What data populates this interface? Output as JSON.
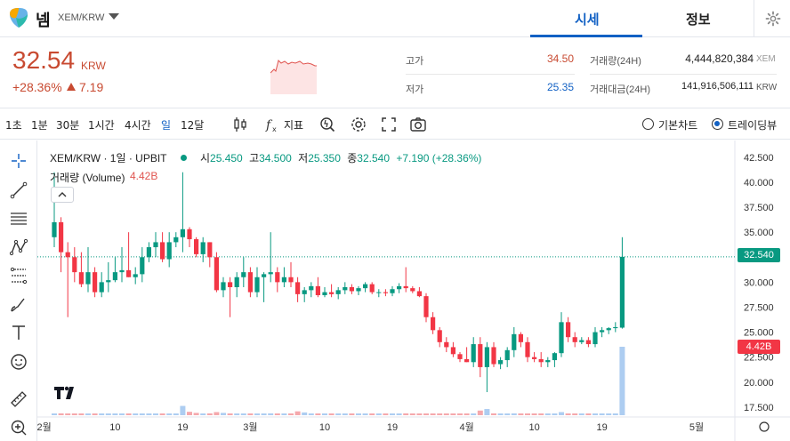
{
  "header": {
    "coin_name": "넴",
    "pair": "XEM/KRW",
    "tabs": [
      "시세",
      "정보"
    ]
  },
  "summary": {
    "price": "32.54",
    "unit": "KRW",
    "change_rate": "+28.36%",
    "change_amount": "7.19",
    "high_label": "고가",
    "high_value": "34.50",
    "low_label": "저가",
    "low_value": "25.35",
    "volume_label": "거래량(24H)",
    "volume_value": "4,444,820,384",
    "volume_unit": "XEM",
    "amount_label": "거래대금(24H)",
    "amount_value": "141,916,506,111",
    "amount_unit": "KRW"
  },
  "toolbar": {
    "intervals": [
      "1초",
      "1분",
      "30분",
      "1시간",
      "4시간",
      "일",
      "12달"
    ],
    "active_interval": "일",
    "indicator_label": "지표",
    "basic_chart_label": "기본차트",
    "tradingview_label": "트레이딩뷰"
  },
  "legend": {
    "symbol": "XEM/KRW · 1일 · UPBIT",
    "o_label": "시",
    "o": "25.450",
    "h_label": "고",
    "h": "34.500",
    "l_label": "저",
    "l": "25.350",
    "c_label": "종",
    "c": "32.540",
    "change": "+7.190 (+28.36%)",
    "volume_label": "거래량 (Volume)",
    "volume_value": "4.42B"
  },
  "price_tag": "32.540",
  "volume_tag": "4.42B",
  "colors": {
    "up": "#089981",
    "down": "#f23645",
    "accent": "#1261c4",
    "brand_red": "#c84a31"
  },
  "chart_data": {
    "type": "candlestick",
    "y_ticks": [
      "42.500",
      "40.000",
      "37.500",
      "35.000",
      "32.500",
      "30.000",
      "27.500",
      "25.000",
      "22.500",
      "20.000",
      "17.500"
    ],
    "ylim": [
      16.6,
      43.2
    ],
    "x_ticks": [
      "2월",
      "10",
      "19",
      "3월",
      "10",
      "19",
      "4월",
      "10",
      "19",
      "5월"
    ],
    "last_close": 32.54,
    "ohlc": [
      [
        34.5,
        41.0,
        33.5,
        36.0
      ],
      [
        36.0,
        36.5,
        31.0,
        33.0
      ],
      [
        33.0,
        34.0,
        26.5,
        32.5
      ],
      [
        32.5,
        33.5,
        30.0,
        31.0
      ],
      [
        31.0,
        33.0,
        29.5,
        29.8
      ],
      [
        29.8,
        33.5,
        29.0,
        31.0
      ],
      [
        31.0,
        31.5,
        28.5,
        29.0
      ],
      [
        29.0,
        31.0,
        28.5,
        30.0
      ],
      [
        30.0,
        32.0,
        29.0,
        30.2
      ],
      [
        30.2,
        32.5,
        30.0,
        31.0
      ],
      [
        31.0,
        33.5,
        30.0,
        31.2
      ],
      [
        31.2,
        35.0,
        30.5,
        30.5
      ],
      [
        30.5,
        31.5,
        29.8,
        30.8
      ],
      [
        30.8,
        33.5,
        30.0,
        32.5
      ],
      [
        32.5,
        34.0,
        32.0,
        33.5
      ],
      [
        33.5,
        35.0,
        32.5,
        34.0
      ],
      [
        34.0,
        35.0,
        32.0,
        32.3
      ],
      [
        32.3,
        35.0,
        31.5,
        34.0
      ],
      [
        34.0,
        35.0,
        33.5,
        34.5
      ],
      [
        34.5,
        41.0,
        33.0,
        35.3
      ],
      [
        35.3,
        35.5,
        33.5,
        34.3
      ],
      [
        34.3,
        34.5,
        32.5,
        32.8
      ],
      [
        32.8,
        34.5,
        32.0,
        34.0
      ],
      [
        34.0,
        34.0,
        31.5,
        32.5
      ],
      [
        32.5,
        33.0,
        29.0,
        29.2
      ],
      [
        29.2,
        30.5,
        28.5,
        30.0
      ],
      [
        30.0,
        30.5,
        26.5,
        29.5
      ],
      [
        29.5,
        31.0,
        28.5,
        30.5
      ],
      [
        30.5,
        32.5,
        29.5,
        31.0
      ],
      [
        31.0,
        31.5,
        28.5,
        29.0
      ],
      [
        29.0,
        31.5,
        28.5,
        30.5
      ],
      [
        30.5,
        31.0,
        28.0,
        30.8
      ],
      [
        30.8,
        35.0,
        30.0,
        31.0
      ],
      [
        31.0,
        31.5,
        29.0,
        30.0
      ],
      [
        30.0,
        31.5,
        29.5,
        30.5
      ],
      [
        30.5,
        32.0,
        29.5,
        30.0
      ],
      [
        30.0,
        30.5,
        28.0,
        28.8
      ],
      [
        28.8,
        29.5,
        28.0,
        29.2
      ],
      [
        29.2,
        30.0,
        28.5,
        29.6
      ],
      [
        29.6,
        30.5,
        28.5,
        28.7
      ],
      [
        28.7,
        29.5,
        28.5,
        29.0
      ],
      [
        29.0,
        29.8,
        28.5,
        28.8
      ],
      [
        28.8,
        29.5,
        28.3,
        29.2
      ],
      [
        29.2,
        30.0,
        28.8,
        29.5
      ],
      [
        29.5,
        29.8,
        28.8,
        29.1
      ],
      [
        29.1,
        29.6,
        28.7,
        29.4
      ],
      [
        29.4,
        30.0,
        29.0,
        29.8
      ],
      [
        29.8,
        30.0,
        28.8,
        29.0
      ],
      [
        29.0,
        29.3,
        28.5,
        29.0
      ],
      [
        29.0,
        29.3,
        28.6,
        28.9
      ],
      [
        28.9,
        29.6,
        28.6,
        29.3
      ],
      [
        29.3,
        29.9,
        28.9,
        29.6
      ],
      [
        29.6,
        31.5,
        29.0,
        29.4
      ],
      [
        29.4,
        29.6,
        28.9,
        29.1
      ],
      [
        29.1,
        29.5,
        28.5,
        28.6
      ],
      [
        28.6,
        28.9,
        26.0,
        26.5
      ],
      [
        26.5,
        27.0,
        24.8,
        25.2
      ],
      [
        25.2,
        25.5,
        23.5,
        24.0
      ],
      [
        24.0,
        24.5,
        23.0,
        23.5
      ],
      [
        23.5,
        24.0,
        22.5,
        22.8
      ],
      [
        22.8,
        23.0,
        22.0,
        22.3
      ],
      [
        22.3,
        23.5,
        22.0,
        22.0
      ],
      [
        22.0,
        24.5,
        21.5,
        23.8
      ],
      [
        23.8,
        24.5,
        20.5,
        21.5
      ],
      [
        21.5,
        24.0,
        19.0,
        23.5
      ],
      [
        23.5,
        24.0,
        21.5,
        21.8
      ],
      [
        21.8,
        22.5,
        21.3,
        22.2
      ],
      [
        22.2,
        23.5,
        21.5,
        23.2
      ],
      [
        23.2,
        25.5,
        22.5,
        24.8
      ],
      [
        24.8,
        25.0,
        23.5,
        24.0
      ],
      [
        24.0,
        24.5,
        22.0,
        22.5
      ],
      [
        22.5,
        23.0,
        22.0,
        22.3
      ],
      [
        22.3,
        23.0,
        21.5,
        22.0
      ],
      [
        22.0,
        22.5,
        21.5,
        22.2
      ],
      [
        22.2,
        23.0,
        21.5,
        22.9
      ],
      [
        22.9,
        27.0,
        22.5,
        26.0
      ],
      [
        26.0,
        26.5,
        24.0,
        24.5
      ],
      [
        24.5,
        25.0,
        23.5,
        24.0
      ],
      [
        24.0,
        24.5,
        23.8,
        24.2
      ],
      [
        24.2,
        24.5,
        23.5,
        23.8
      ],
      [
        23.8,
        25.5,
        23.5,
        25.0
      ],
      [
        25.0,
        25.5,
        24.5,
        25.2
      ],
      [
        25.2,
        25.5,
        24.8,
        25.4
      ],
      [
        25.4,
        26.0,
        25.0,
        25.5
      ],
      [
        25.45,
        34.5,
        25.35,
        32.54
      ]
    ],
    "volume_unit": "B",
    "volume": [
      0.1,
      0.12,
      0.09,
      0.08,
      0.07,
      0.07,
      0.06,
      0.07,
      0.05,
      0.05,
      0.06,
      0.06,
      0.04,
      0.05,
      0.06,
      0.05,
      0.06,
      0.05,
      0.04,
      0.6,
      0.22,
      0.15,
      0.1,
      0.12,
      0.2,
      0.15,
      0.08,
      0.09,
      0.07,
      0.06,
      0.06,
      0.05,
      0.12,
      0.07,
      0.05,
      0.04,
      0.25,
      0.18,
      0.08,
      0.06,
      0.05,
      0.05,
      0.06,
      0.04,
      0.05,
      0.05,
      0.07,
      0.05,
      0.04,
      0.04,
      0.05,
      0.05,
      0.12,
      0.06,
      0.05,
      0.05,
      0.07,
      0.1,
      0.09,
      0.08,
      0.06,
      0.06,
      0.08,
      0.3,
      0.4,
      0.12,
      0.08,
      0.1,
      0.12,
      0.06,
      0.05,
      0.05,
      0.04,
      0.05,
      0.05,
      0.2,
      0.1,
      0.07,
      0.06,
      0.05,
      0.07,
      0.05,
      0.05,
      0.06,
      4.42
    ]
  }
}
